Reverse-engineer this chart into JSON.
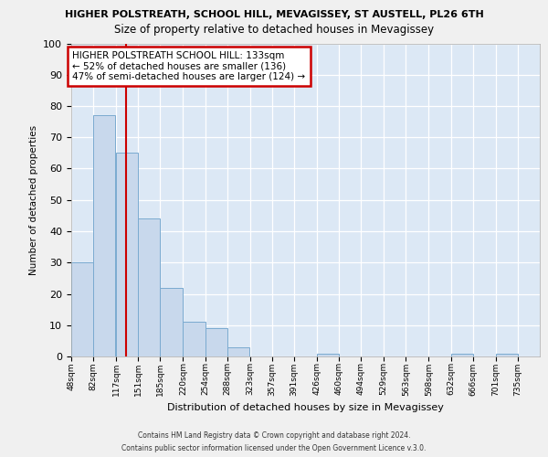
{
  "title1": "HIGHER POLSTREATH, SCHOOL HILL, MEVAGISSEY, ST AUSTELL, PL26 6TH",
  "title2": "Size of property relative to detached houses in Mevagissey",
  "xlabel": "Distribution of detached houses by size in Mevagissey",
  "ylabel": "Number of detached properties",
  "bins": [
    48,
    82,
    117,
    151,
    185,
    220,
    254,
    288,
    323,
    357,
    391,
    426,
    460,
    494,
    529,
    563,
    598,
    632,
    666,
    701,
    735
  ],
  "values": [
    30,
    77,
    65,
    44,
    22,
    11,
    9,
    3,
    0,
    0,
    0,
    1,
    0,
    0,
    0,
    0,
    0,
    1,
    0,
    1,
    0
  ],
  "bar_color": "#c8d8ec",
  "bar_edge_color": "#7aaad0",
  "red_line_x": 133,
  "ann_line1": "HIGHER POLSTREATH SCHOOL HILL: 133sqm",
  "ann_line2": "← 52% of detached houses are smaller (136)",
  "ann_line3": "47% of semi-detached houses are larger (124) →",
  "footer1": "Contains HM Land Registry data © Crown copyright and database right 2024.",
  "footer2": "Contains public sector information licensed under the Open Government Licence v.3.0.",
  "ylim": [
    0,
    100
  ],
  "fig_bg": "#f0f0f0",
  "plot_bg": "#dce8f5",
  "grid_color": "#ffffff",
  "ann_box_edge": "#cc0000"
}
